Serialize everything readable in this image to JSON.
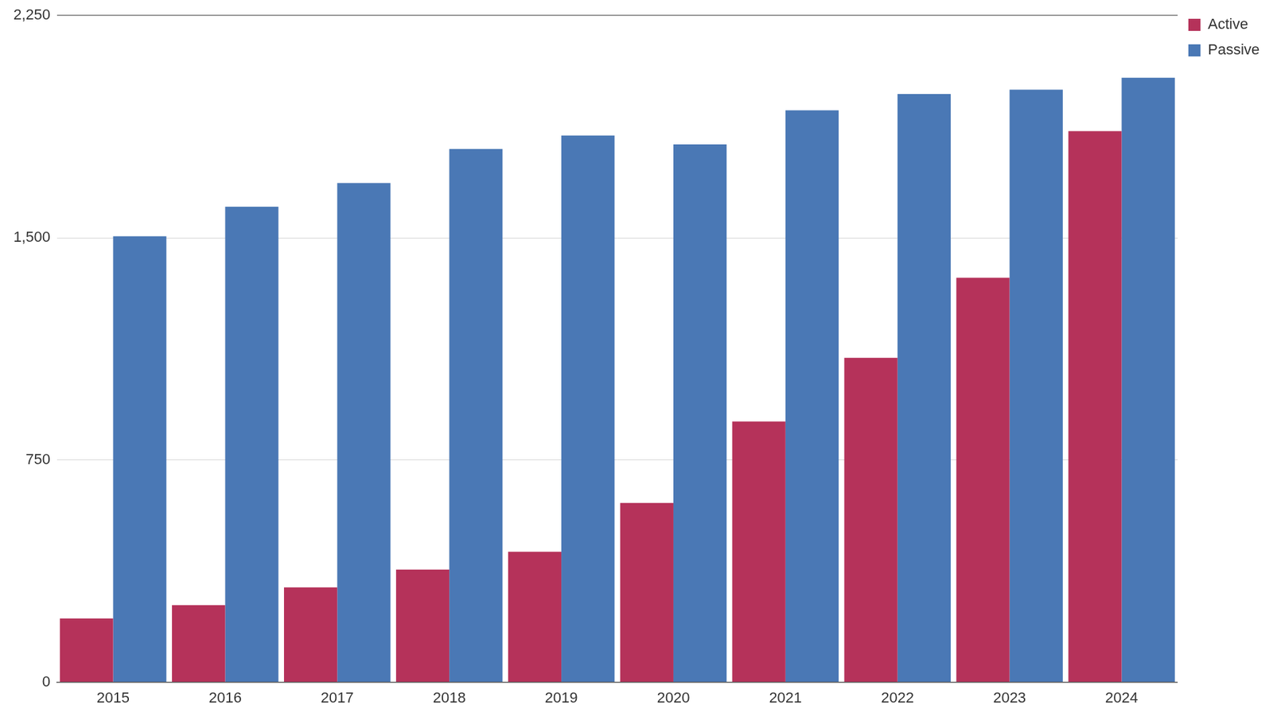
{
  "chart_data": {
    "type": "bar",
    "categories": [
      "2015",
      "2016",
      "2017",
      "2018",
      "2019",
      "2020",
      "2021",
      "2022",
      "2023",
      "2024"
    ],
    "series": [
      {
        "name": "Active",
        "color": "#b5325a",
        "values": [
          215,
          260,
          320,
          380,
          440,
          605,
          880,
          1095,
          1365,
          1860
        ]
      },
      {
        "name": "Passive",
        "color": "#4a78b5",
        "values": [
          1505,
          1605,
          1685,
          1800,
          1845,
          1815,
          1930,
          1985,
          2000,
          2040
        ]
      }
    ],
    "ylim": [
      0,
      2250
    ],
    "yticks": [
      0,
      750,
      {
        "value": 1500,
        "label": "1,500"
      },
      {
        "value": 2250,
        "label": "2,250"
      }
    ],
    "grid": true,
    "legend": "top-right"
  }
}
